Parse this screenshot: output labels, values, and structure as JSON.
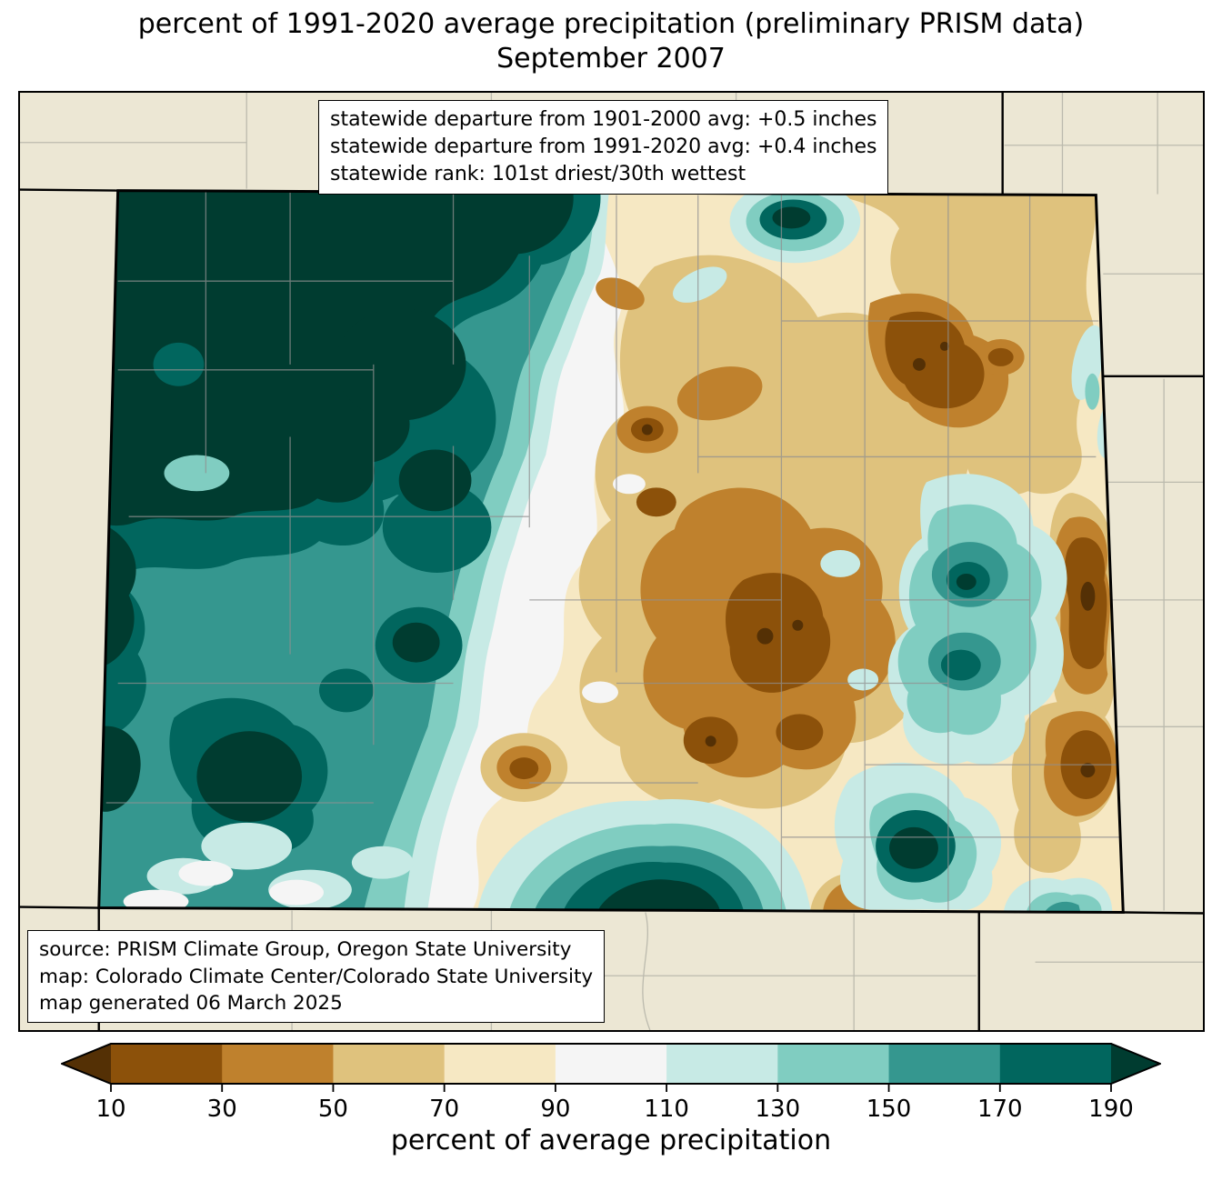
{
  "title": {
    "line1": "percent of 1991-2020 average precipitation (preliminary PRISM data)",
    "line2": "September 2007"
  },
  "stats_box": {
    "lines": [
      "statewide departure from 1901-2000 avg: +0.5 inches",
      "statewide departure from 1991-2020 avg: +0.4 inches",
      "statewide rank: 101st driest/30th wettest"
    ]
  },
  "source_box": {
    "lines": [
      "source: PRISM Climate Group, Oregon State University",
      "map: Colorado Climate Center/Colorado State University",
      "map generated 06 March 2025"
    ]
  },
  "colorbar": {
    "label": "percent of average precipitation",
    "ticks": [
      "10",
      "30",
      "50",
      "70",
      "90",
      "110",
      "130",
      "150",
      "170",
      "190"
    ],
    "colors": [
      "#543005",
      "#8c510a",
      "#bf812d",
      "#dfc27d",
      "#f6e8c3",
      "#f5f5f5",
      "#c7eae5",
      "#80cdc1",
      "#35978f",
      "#01665e",
      "#003c30"
    ]
  },
  "map": {
    "background_color": "#ece7d4",
    "state_border_color": "#000000",
    "county_line_color": "#909090"
  }
}
